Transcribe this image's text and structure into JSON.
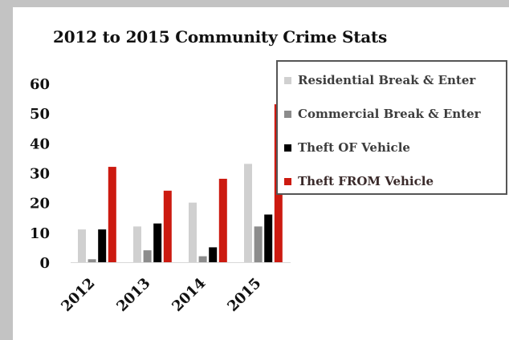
{
  "chart_data": {
    "type": "bar",
    "title": "2012 to 2015 Community Crime Stats",
    "xlabel": "",
    "ylabel": "",
    "categories": [
      "2012",
      "2013",
      "2014",
      "2015"
    ],
    "ylim": [
      0,
      60
    ],
    "yticks": [
      "0",
      "10",
      "20",
      "30",
      "40",
      "50",
      "60"
    ],
    "grid": false,
    "legend_position": "top-right",
    "series": [
      {
        "name": "Residential Break & Enter",
        "color": "#d0d0d0",
        "values": [
          11,
          12,
          20,
          33
        ]
      },
      {
        "name": "Commercial Break & Enter",
        "color": "#8c8c8c",
        "values": [
          1,
          4,
          2,
          12
        ]
      },
      {
        "name": "Theft OF Vehicle",
        "color": "#000000",
        "values": [
          11,
          13,
          5,
          16
        ]
      },
      {
        "name": "Theft FROM Vehicle",
        "color": "#cc1a10",
        "values": [
          32,
          24,
          28,
          53
        ]
      }
    ]
  }
}
